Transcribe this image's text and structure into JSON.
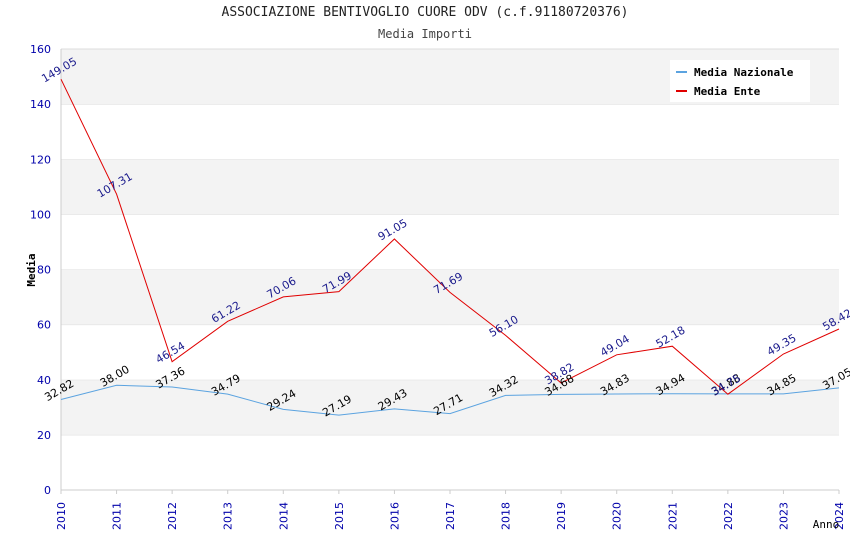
{
  "chart_data": {
    "type": "line",
    "title": "ASSOCIAZIONE BENTIVOGLIO CUORE ODV (c.f.91180720376)",
    "subtitle": "Media Importi",
    "xlabel": "Anno",
    "ylabel": "Media",
    "x": [
      "2010",
      "2011",
      "2012",
      "2013",
      "2014",
      "2015",
      "2016",
      "2017",
      "2018",
      "2019",
      "2020",
      "2021",
      "2022",
      "2023",
      "2024"
    ],
    "ylim": [
      0,
      160
    ],
    "yticks": [
      "0",
      "20",
      "40",
      "60",
      "80",
      "100",
      "120",
      "140",
      "160"
    ],
    "grid": true,
    "legend": "top-right",
    "series": [
      {
        "name": "Media Nazionale",
        "color": "#5ba3e0",
        "label_color": "#000000",
        "values": [
          32.82,
          38.0,
          37.36,
          34.79,
          29.24,
          27.19,
          29.43,
          27.71,
          34.32,
          34.68,
          34.83,
          34.94,
          34.88,
          34.85,
          37.05
        ],
        "labels": [
          "32.82",
          "38.00",
          "37.36",
          "34.79",
          "29.24",
          "27.19",
          "29.43",
          "27.71",
          "34.32",
          "34.68",
          "34.83",
          "34.94",
          "34.88",
          "34.85",
          "37.05"
        ]
      },
      {
        "name": "Media Ente",
        "color": "#e00000",
        "label_color": "#1a1a8c",
        "values": [
          149.05,
          107.31,
          46.54,
          61.22,
          70.06,
          71.99,
          91.05,
          71.69,
          56.1,
          38.82,
          49.04,
          52.18,
          34.75,
          49.35,
          58.42
        ],
        "labels": [
          "149.05",
          "107.31",
          "46.54",
          "61.22",
          "70.06",
          "71.99",
          "91.05",
          "71.69",
          "56.10",
          "38.82",
          "49.04",
          "52.18",
          "34.75",
          "49.35",
          "58.42"
        ]
      }
    ]
  }
}
